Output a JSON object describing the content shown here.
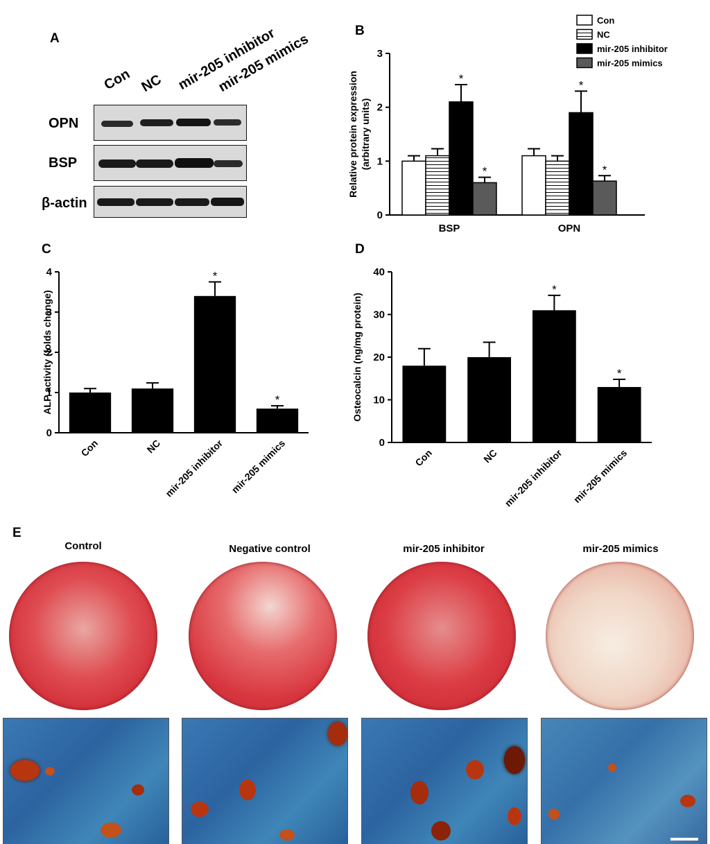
{
  "panel_letters": {
    "a": "A",
    "b": "B",
    "c": "C",
    "d": "D",
    "e": "E"
  },
  "blot": {
    "lanes": [
      "Con",
      "NC",
      "mir-205 inhibitor",
      "mir-205 mimics"
    ],
    "rows": [
      "OPN",
      "BSP",
      "β-actin"
    ],
    "colors": {
      "band": "#1a1a1a",
      "membrane": "#d9d9d9"
    }
  },
  "stain": {
    "titles": [
      "Control",
      "Negative control",
      "mir-205 inhibitor",
      "mir-205 mimics"
    ],
    "colors": {
      "alizarin_red": "#d8363f",
      "pale_dish": "#f1d9c9",
      "microscope_blue": "#2f6ea8",
      "nodule": "#b8360f"
    }
  },
  "chart_data": [
    {
      "type": "bar",
      "panel": "B",
      "categories": [
        "BSP",
        "OPN"
      ],
      "ylabel": "Relative protein expression\n(arbitrary units)",
      "xlabel": "",
      "ylim": [
        0,
        3
      ],
      "yticks": [
        "0",
        "1",
        "2",
        "3"
      ],
      "legend_position": "top-right",
      "series": [
        {
          "name": "Con",
          "fill": "#ffffff",
          "pattern": "none",
          "values": [
            1.0,
            1.1
          ],
          "errors": [
            0.1,
            0.13
          ],
          "sig": [
            false,
            false
          ]
        },
        {
          "name": "NC",
          "fill": "#ffffff",
          "pattern": "hlines",
          "values": [
            1.1,
            1.0
          ],
          "errors": [
            0.13,
            0.1
          ],
          "sig": [
            false,
            false
          ]
        },
        {
          "name": "mir-205 inhibitor",
          "fill": "#000000",
          "pattern": "none",
          "values": [
            2.1,
            1.9
          ],
          "errors": [
            0.32,
            0.4
          ],
          "sig": [
            true,
            true
          ]
        },
        {
          "name": "mir-205 mimics",
          "fill": "#5a5a5a",
          "pattern": "none",
          "values": [
            0.6,
            0.63
          ],
          "errors": [
            0.1,
            0.1
          ],
          "sig": [
            true,
            true
          ]
        }
      ],
      "sig_label": "*"
    },
    {
      "type": "bar",
      "panel": "C",
      "categories": [
        "Con",
        "NC",
        "mir-205 inhibitor",
        "mir-205 mimics"
      ],
      "values": [
        1.0,
        1.1,
        3.4,
        0.6
      ],
      "errors": [
        0.1,
        0.14,
        0.35,
        0.07
      ],
      "sig": [
        false,
        false,
        true,
        true
      ],
      "sig_label": "*",
      "ylabel": "ALP activity (folds change)",
      "xlabel": "",
      "ylim": [
        0,
        4
      ],
      "yticks": [
        "0",
        "1",
        "2",
        "3",
        "4"
      ]
    },
    {
      "type": "bar",
      "panel": "D",
      "categories": [
        "Con",
        "NC",
        "mir-205 inhibitor",
        "mir-205 mimics"
      ],
      "values": [
        18,
        20,
        31,
        13
      ],
      "errors": [
        4,
        3.5,
        3.5,
        1.8
      ],
      "sig": [
        false,
        false,
        true,
        true
      ],
      "sig_label": "*",
      "ylabel": "Osteocalcin (ng/mg protein)",
      "xlabel": "",
      "ylim": [
        0,
        40
      ],
      "yticks": [
        "0",
        "10",
        "20",
        "30",
        "40"
      ]
    }
  ]
}
